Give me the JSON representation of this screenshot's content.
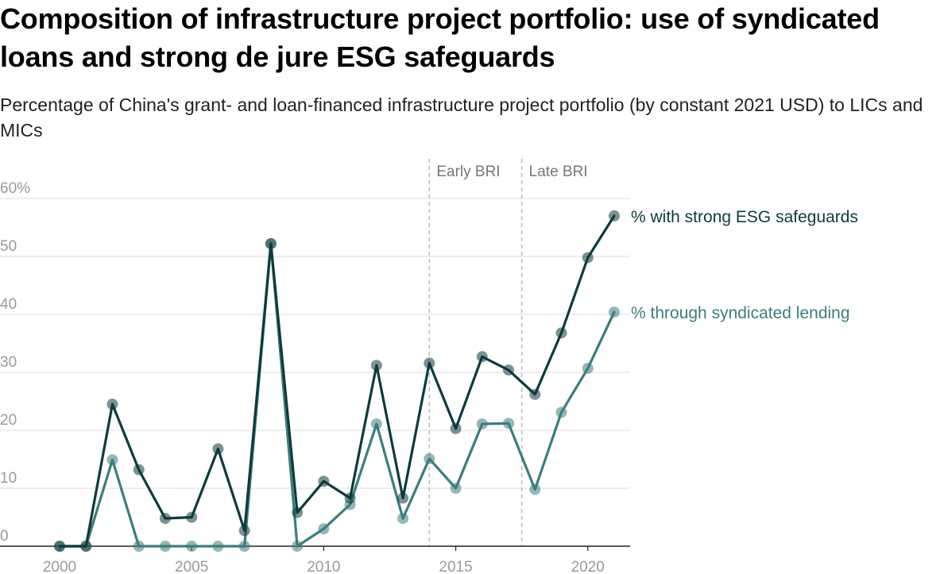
{
  "title": "Composition of infrastructure project portfolio: use of syndicated loans and strong de jure ESG safeguards",
  "subtitle": "Percentage of China's grant- and loan-financed infrastructure project portfolio (by constant 2021 USD) to LICs and MICs",
  "chart_data": {
    "type": "line",
    "x": [
      2000,
      2001,
      2002,
      2003,
      2004,
      2005,
      2006,
      2007,
      2008,
      2009,
      2010,
      2011,
      2012,
      2013,
      2014,
      2015,
      2016,
      2017,
      2018,
      2019,
      2020,
      2021
    ],
    "series": [
      {
        "name": "% with strong ESG safeguards",
        "color": "#0d3b3c",
        "values": [
          0,
          0,
          24.5,
          13.2,
          4.8,
          5.0,
          16.8,
          2.7,
          52.2,
          5.8,
          11.2,
          8.3,
          31.2,
          8.3,
          31.6,
          20.3,
          32.7,
          30.4,
          26.2,
          36.8,
          49.8,
          57.0
        ]
      },
      {
        "name": "% through syndicated lending",
        "color": "#3a7e7d",
        "values": [
          0,
          0,
          14.9,
          0,
          0,
          0,
          0,
          0,
          52.2,
          0,
          3.0,
          7.2,
          21.1,
          4.8,
          15.1,
          10.0,
          21.1,
          21.2,
          9.8,
          23.1,
          30.7,
          40.4
        ]
      }
    ],
    "xlim": [
      2000,
      2021
    ],
    "ylim": [
      0,
      60
    ],
    "xticks": [
      2000,
      2005,
      2010,
      2015,
      2020
    ],
    "xtick_labels": [
      "2000",
      "2005",
      "2010",
      "2015",
      "2020"
    ],
    "yticks": [
      0,
      10,
      20,
      30,
      40,
      50,
      60
    ],
    "ytick_labels": [
      "0",
      "10",
      "20",
      "30",
      "40",
      "50",
      "60%"
    ],
    "grid": true,
    "legend": "direct labels at right end of lines",
    "annotations": [
      {
        "label": "Early BRI",
        "x": 2014
      },
      {
        "label": "Late BRI",
        "x": 2017.5
      }
    ],
    "colors": {
      "grid": "#e3e3e3",
      "axis": "#222222",
      "era_line": "#bdbdbd"
    }
  }
}
